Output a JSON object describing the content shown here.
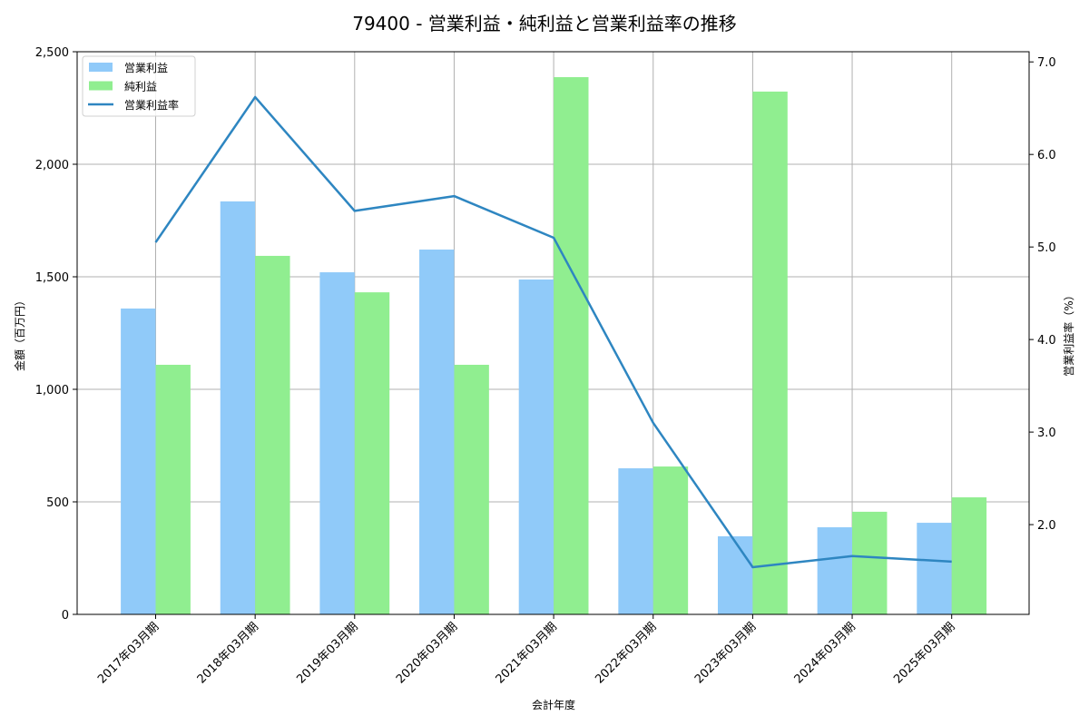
{
  "chart_data": {
    "type": "bar+line",
    "title": "79400 - 営業利益・純利益と営業利益率の推移",
    "xlabel": "会計年度",
    "ylabel": "金額（百万円）",
    "y2label": "営業利益率（%）",
    "categories": [
      "2017年03月期",
      "2018年03月期",
      "2019年03月期",
      "2020年03月期",
      "2021年03月期",
      "2022年03月期",
      "2023年03月期",
      "2024年03月期",
      "2025年03月期"
    ],
    "series": [
      {
        "name": "営業利益",
        "type": "bar",
        "axis": "left",
        "color": "#90caf9",
        "values": [
          1359,
          1835,
          1520,
          1621,
          1488,
          649,
          347,
          387,
          407
        ]
      },
      {
        "name": "純利益",
        "type": "bar",
        "axis": "left",
        "color": "#90ee90",
        "values": [
          1109,
          1593,
          1431,
          1109,
          2387,
          657,
          2323,
          456,
          520
        ]
      },
      {
        "name": "営業利益率",
        "type": "line",
        "axis": "right",
        "color": "#2e86c1",
        "values": [
          5.05,
          6.62,
          5.39,
          5.55,
          5.1,
          3.1,
          1.54,
          1.66,
          1.6
        ]
      }
    ],
    "ylim": [
      0,
      2500
    ],
    "y2lim": [
      1.03,
      7.11
    ],
    "yticks": [
      0,
      500,
      1000,
      1500,
      2000,
      2500
    ],
    "ytick_labels": [
      "0",
      "500",
      "1,000",
      "1,500",
      "2,000",
      "2,500"
    ],
    "y2ticks": [
      2.0,
      3.0,
      4.0,
      5.0,
      6.0,
      7.0
    ],
    "y2tick_labels": [
      "2.0",
      "3.0",
      "4.0",
      "5.0",
      "6.0",
      "7.0"
    ],
    "grid": true,
    "legend_position": "upper left"
  }
}
